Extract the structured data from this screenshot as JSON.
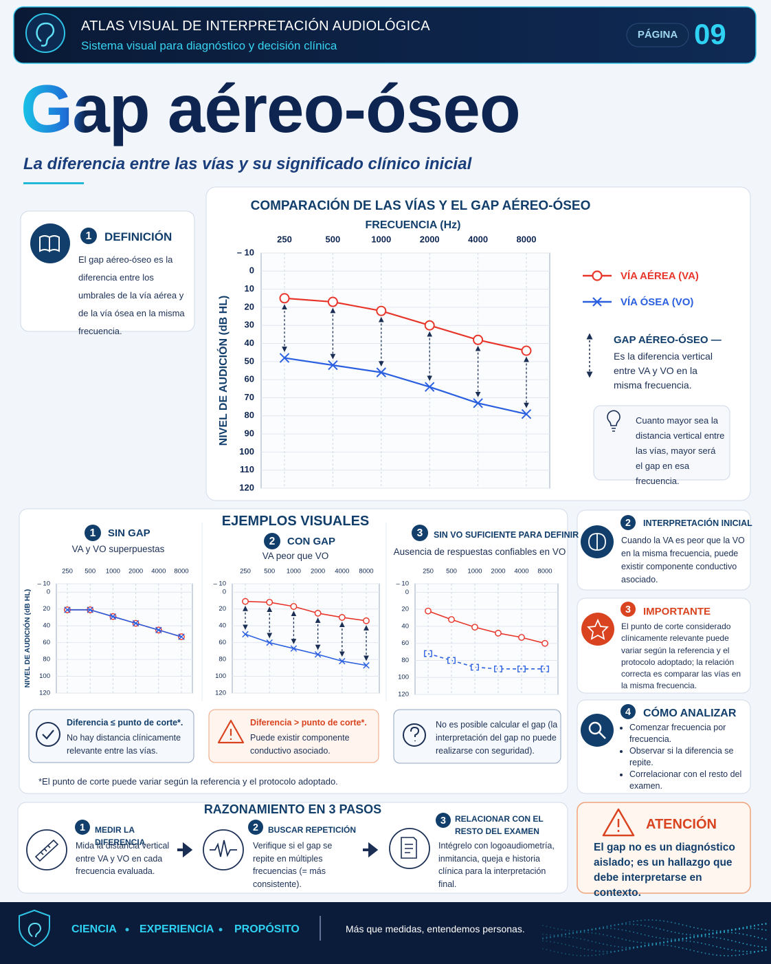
{
  "header": {
    "title": "ATLAS VISUAL DE INTERPRETACIÓN AUDIOLÓGICA",
    "subtitle": "Sistema visual para diagnóstico y decisión clínica",
    "page_label": "PÁGINA",
    "page_number": "09"
  },
  "hero": {
    "title": "Gap aéreo-óseo",
    "subtitle": "La diferencia entre las vías y su significado clínico inicial"
  },
  "definition": {
    "number": "1",
    "title": "DEFINICIÓN",
    "text": "El gap aéreo-óseo es la diferencia entre los umbrales de la vía aérea y de la vía ósea en la misma frecuencia."
  },
  "main_chart": {
    "type": "line",
    "title": "COMPARACIÓN DE LAS VÍAS Y EL GAP AÉREO-ÓSEO",
    "x_label": "FRECUENCIA (Hz)",
    "y_label": "NIVEL DE AUDICIÓN (dB HL)",
    "categories": [
      "250",
      "500",
      "1000",
      "2000",
      "4000",
      "8000"
    ],
    "ylim": [
      -10,
      120
    ],
    "y_reversed": true,
    "yticks": [
      {
        "value": -10,
        "label": "– 10"
      },
      0,
      10,
      20,
      30,
      40,
      50,
      60,
      70,
      80,
      90,
      100,
      110,
      120
    ],
    "grid": true,
    "gap_arrows": true,
    "series": [
      {
        "name": "VÍA AÉREA (VA)",
        "color": "#e8352a",
        "marker": "circle",
        "values": [
          15,
          17,
          22,
          30,
          38,
          44
        ]
      },
      {
        "name": "VÍA ÓSEA (VO)",
        "color": "#2a5fe0",
        "marker": "x",
        "values": [
          48,
          52,
          56,
          64,
          73,
          79
        ]
      }
    ],
    "gap_legend": {
      "title": "GAP AÉREO-ÓSEO —",
      "text": "Es la diferencia vertical entre VA y VO en la misma frecuencia."
    },
    "tip": "Cuanto mayor sea la distancia vertical entre las vías, mayor será el gap en esa frecuencia."
  },
  "examples": {
    "title": "EJEMPLOS VISUALES",
    "footnote": "*El punto de corte puede variar según la referencia y el protocolo adoptado.",
    "axis": {
      "y_label": "NIVEL DE AUDICIÓN (dB HL)",
      "categories": [
        "250",
        "500",
        "1000",
        "2000",
        "4000",
        "8000"
      ],
      "ylim": [
        -10,
        120
      ],
      "y_reversed": true,
      "yticks": [
        {
          "value": -10,
          "label": "– 10"
        },
        0,
        20,
        40,
        60,
        80,
        100,
        120
      ],
      "grid": true
    },
    "items": [
      {
        "number": "1",
        "title": "SIN GAP",
        "subtitle": "VA y VO superpuestas",
        "gap_arrows": false,
        "series": [
          {
            "color": "#e8352a",
            "marker": "circle",
            "values": [
              21,
              21,
              29,
              37,
              45,
              53
            ]
          },
          {
            "color": "#2a5fe0",
            "marker": "x",
            "values": [
              21,
              21,
              29,
              37,
              45,
              53
            ]
          }
        ],
        "note": {
          "title": "Diferencia ≤ punto de corte*.",
          "text": "No hay distancia clínicamente relevante entre las vías."
        }
      },
      {
        "number": "2",
        "title": "CON GAP",
        "subtitle": "VA peor que VO",
        "gap_arrows": true,
        "series": [
          {
            "color": "#e8352a",
            "marker": "circle",
            "values": [
              11,
              12,
              17,
              25,
              30,
              34
            ]
          },
          {
            "color": "#2a5fe0",
            "marker": "x",
            "values": [
              50,
              60,
              67,
              74,
              82,
              87
            ]
          }
        ],
        "note": {
          "title": "Diferencia > punto de corte*.",
          "text": "Puede existir componente conductivo asociado."
        }
      },
      {
        "number": "3",
        "title": "SIN VO SUFICIENTE PARA DEFINIR",
        "subtitle": "Ausencia de respuestas confiables en VO",
        "gap_arrows": false,
        "series": [
          {
            "color": "#e8352a",
            "marker": "circle",
            "values": [
              22,
              32,
              41,
              48,
              53,
              60
            ]
          },
          {
            "color": "#2a5fe0",
            "marker": "bracket",
            "dashed": true,
            "values": [
              72,
              80,
              88,
              90,
              90,
              90
            ]
          }
        ],
        "note": {
          "text": "No es posible calcular el gap (la interpretación del gap no puede realizarse con seguridad)."
        }
      }
    ]
  },
  "cards": [
    {
      "number": "2",
      "title": "INTERPRETACIÓN INICIAL",
      "text": "Cuando la VA es peor que la VO en la misma frecuencia, puede existir componente conductivo asociado."
    },
    {
      "number": "3",
      "title": "IMPORTANTE",
      "text": "El punto de corte considerado clínicamente relevante puede variar según la referencia y el protocolo adoptado; la relación correcta es comparar las vías en la misma frecuencia."
    },
    {
      "number": "4",
      "title": "CÓMO ANALIZAR",
      "bullets": [
        "Comenzar frecuencia por frecuencia.",
        "Observar si la diferencia se repite.",
        "Correlacionar con el resto del examen."
      ]
    }
  ],
  "steps": {
    "title": "RAZONAMIENTO EN 3 PASOS",
    "items": [
      {
        "number": "1",
        "title": "MEDIR LA DIFERENCIA",
        "text": "Mida la distancia vertical entre VA y VO en cada frecuencia evaluada."
      },
      {
        "number": "2",
        "title": "BUSCAR REPETICIÓN",
        "text": "Verifique si el gap se repite en múltiples frecuencias (= más consistente)."
      },
      {
        "number": "3",
        "title": "RELACIONAR CON EL RESTO DEL EXAMEN",
        "text": "Intégrelo con logoaudiometría, inmitancia, queja e historia clínica para la interpretación final."
      }
    ]
  },
  "attention": {
    "title": "ATENCIÓN",
    "text": "El gap no es un diagnóstico aislado; es un hallazgo que debe interpretarse en contexto."
  },
  "footer": {
    "values": [
      "CIENCIA",
      "EXPERIENCIA",
      "PROPÓSITO"
    ],
    "slogan": "Más que medidas, entendemos personas."
  }
}
